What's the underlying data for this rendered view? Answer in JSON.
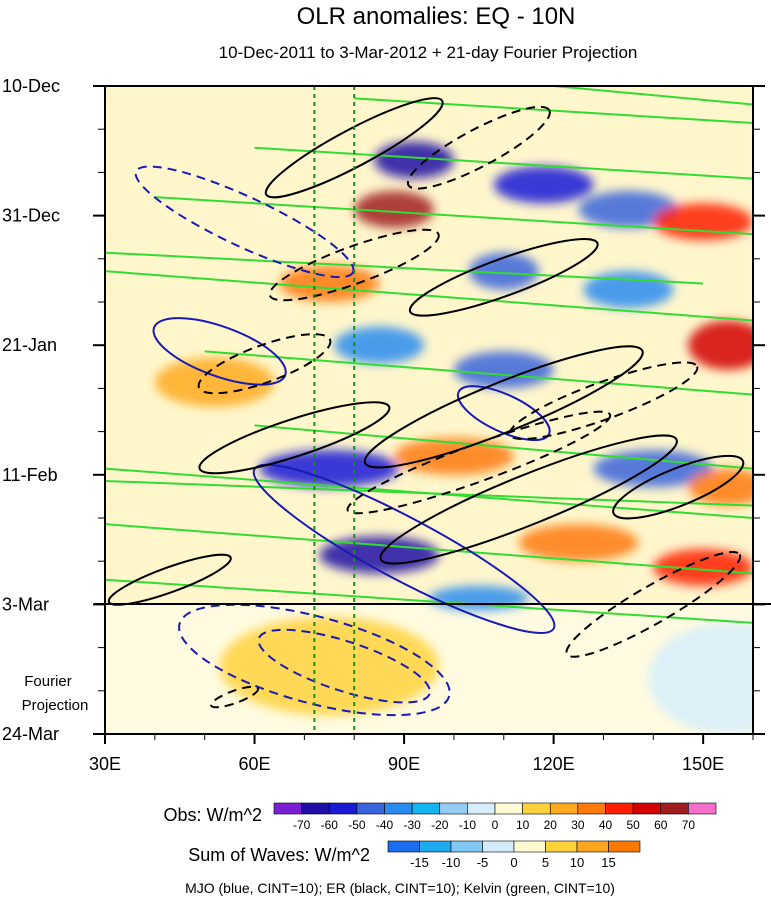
{
  "chart_data": {
    "type": "heatmap",
    "title": "OLR anomalies: EQ - 10N",
    "subtitle": "10-Dec-2011 to 3-Mar-2012 + 21-day Fourier Projection",
    "x_axis": {
      "range": [
        30,
        160
      ],
      "ticks": [
        30,
        60,
        90,
        120,
        150
      ],
      "tick_labels": [
        "30E",
        "60E",
        "90E",
        "120E",
        "150E"
      ]
    },
    "y_axis": {
      "direction": "time increasing downward",
      "range_days": [
        0,
        105
      ],
      "ticks_days": [
        0,
        21,
        42,
        63,
        84,
        105
      ],
      "tick_labels": [
        "10-Dec",
        "31-Dec",
        "21-Jan",
        "11-Feb",
        "3-Mar",
        "24-Mar"
      ]
    },
    "projection_start_day": 84,
    "projection_label_line1": "Fourier",
    "projection_label_line2": "Projection",
    "reference_longitudes": [
      72,
      80
    ],
    "obs_colorbar": {
      "label": "Obs: W/m^2",
      "levels": [
        "-70",
        "-60",
        "-50",
        "-40",
        "-30",
        "-20",
        "-10",
        "0",
        "10",
        "20",
        "30",
        "40",
        "50",
        "60",
        "70"
      ],
      "colors": [
        "#7a1fd6",
        "#1f0fa6",
        "#1a1ad6",
        "#3a64dc",
        "#2a8cf0",
        "#14b4f0",
        "#96ccf4",
        "#d6eefc",
        "#fffbd2",
        "#ffd23c",
        "#ffaa1e",
        "#ff7a0a",
        "#ff1e00",
        "#d20000",
        "#a01e1e",
        "#f56ec8"
      ]
    },
    "waves_colorbar": {
      "label": "Sum of Waves: W/m^2",
      "levels": [
        "-15",
        "-10",
        "-5",
        "0",
        "5",
        "10",
        "15"
      ],
      "colors": [
        "#1a6eee",
        "#1eaaee",
        "#82c8f4",
        "#d2ecfc",
        "#fffad2",
        "#ffd23c",
        "#ffa51e",
        "#ff7800"
      ]
    },
    "contour_sets": [
      {
        "name": "MJO",
        "color": "#1a1ab4",
        "cint": 10
      },
      {
        "name": "ER",
        "color": "#000000",
        "cint": 10
      },
      {
        "name": "Kelvin",
        "color": "#32dc32",
        "cint": 10
      }
    ],
    "footer": "MJO (blue, CINT=10); ER (black, CINT=10); Kelvin (green, CINT=10)",
    "anomaly_features": [
      {
        "lon": 92,
        "day": 12,
        "rx": 8,
        "ry": 3,
        "value": -70
      },
      {
        "lon": 118,
        "day": 16,
        "rx": 10,
        "ry": 3,
        "value": -60
      },
      {
        "lon": 135,
        "day": 20,
        "rx": 10,
        "ry": 3,
        "value": -50
      },
      {
        "lon": 88,
        "day": 20,
        "rx": 8,
        "ry": 3,
        "value": 60
      },
      {
        "lon": 150,
        "day": 22,
        "rx": 10,
        "ry": 3,
        "value": 40
      },
      {
        "lon": 110,
        "day": 30,
        "rx": 7,
        "ry": 3,
        "value": -50
      },
      {
        "lon": 75,
        "day": 32,
        "rx": 10,
        "ry": 3,
        "value": 30
      },
      {
        "lon": 135,
        "day": 33,
        "rx": 9,
        "ry": 3,
        "value": -40
      },
      {
        "lon": 155,
        "day": 42,
        "rx": 8,
        "ry": 4,
        "value": 50
      },
      {
        "lon": 85,
        "day": 42,
        "rx": 9,
        "ry": 3,
        "value": -40
      },
      {
        "lon": 110,
        "day": 46,
        "rx": 10,
        "ry": 3,
        "value": -50
      },
      {
        "lon": 52,
        "day": 48,
        "rx": 12,
        "ry": 4,
        "value": 20
      },
      {
        "lon": 75,
        "day": 62,
        "rx": 14,
        "ry": 3,
        "value": -60
      },
      {
        "lon": 100,
        "day": 60,
        "rx": 12,
        "ry": 3,
        "value": 30
      },
      {
        "lon": 140,
        "day": 62,
        "rx": 12,
        "ry": 3,
        "value": -50
      },
      {
        "lon": 155,
        "day": 65,
        "rx": 8,
        "ry": 3,
        "value": 30
      },
      {
        "lon": 85,
        "day": 76,
        "rx": 12,
        "ry": 3,
        "value": -70
      },
      {
        "lon": 125,
        "day": 74,
        "rx": 12,
        "ry": 3,
        "value": 30
      },
      {
        "lon": 150,
        "day": 78,
        "rx": 10,
        "ry": 3,
        "value": 40
      },
      {
        "lon": 105,
        "day": 83,
        "rx": 10,
        "ry": 2,
        "value": -40
      },
      {
        "lon": 75,
        "day": 94,
        "rx": 22,
        "ry": 8,
        "value": 15
      },
      {
        "lon": 155,
        "day": 96,
        "rx": 16,
        "ry": 9,
        "value": -10
      }
    ],
    "contours": [
      {
        "set": "MJO",
        "dash": true,
        "lon": 58,
        "day": 22,
        "rx": 24,
        "ry": 4,
        "angle": 25
      },
      {
        "set": "MJO",
        "dash": false,
        "lon": 53,
        "day": 43,
        "rx": 14,
        "ry": 4,
        "angle": 20
      },
      {
        "set": "MJO",
        "dash": false,
        "lon": 110,
        "day": 53,
        "rx": 10,
        "ry": 3,
        "angle": 25
      },
      {
        "set": "MJO",
        "dash": false,
        "lon": 90,
        "day": 75,
        "rx": 34,
        "ry": 5,
        "angle": 28
      },
      {
        "set": "MJO",
        "dash": true,
        "lon": 72,
        "day": 93,
        "rx": 28,
        "ry": 7,
        "angle": 15
      },
      {
        "set": "MJO",
        "dash": true,
        "lon": 78,
        "day": 94,
        "rx": 18,
        "ry": 4,
        "angle": 18
      },
      {
        "set": "ER",
        "dash": false,
        "lon": 80,
        "day": 10,
        "rx": 20,
        "ry": 3,
        "angle": -28
      },
      {
        "set": "ER",
        "dash": true,
        "lon": 105,
        "day": 10,
        "rx": 16,
        "ry": 3,
        "angle": -28
      },
      {
        "set": "ER",
        "dash": true,
        "lon": 80,
        "day": 29,
        "rx": 18,
        "ry": 3,
        "angle": -20
      },
      {
        "set": "ER",
        "dash": false,
        "lon": 110,
        "day": 31,
        "rx": 20,
        "ry": 3,
        "angle": -20
      },
      {
        "set": "ER",
        "dash": true,
        "lon": 62,
        "day": 45,
        "rx": 14,
        "ry": 3,
        "angle": -20
      },
      {
        "set": "ER",
        "dash": false,
        "lon": 68,
        "day": 57,
        "rx": 20,
        "ry": 3,
        "angle": -18
      },
      {
        "set": "ER",
        "dash": false,
        "lon": 110,
        "day": 52,
        "rx": 30,
        "ry": 4,
        "angle": -22
      },
      {
        "set": "ER",
        "dash": true,
        "lon": 130,
        "day": 51,
        "rx": 20,
        "ry": 3,
        "angle": -20
      },
      {
        "set": "ER",
        "dash": false,
        "lon": 115,
        "day": 67,
        "rx": 32,
        "ry": 4,
        "angle": -22
      },
      {
        "set": "ER",
        "dash": true,
        "lon": 105,
        "day": 61,
        "rx": 28,
        "ry": 3,
        "angle": -20
      },
      {
        "set": "ER",
        "dash": false,
        "lon": 145,
        "day": 65,
        "rx": 14,
        "ry": 3,
        "angle": -22
      },
      {
        "set": "ER",
        "dash": false,
        "lon": 43,
        "day": 80,
        "rx": 13,
        "ry": 2,
        "angle": -20
      },
      {
        "set": "ER",
        "dash": true,
        "lon": 140,
        "day": 84,
        "rx": 20,
        "ry": 3,
        "angle": -30
      },
      {
        "set": "ER",
        "dash": true,
        "lon": 56,
        "day": 99,
        "rx": 5,
        "ry": 1,
        "angle": -20
      }
    ],
    "kelvin_lines": [
      [
        30,
        30,
        160,
        38
      ],
      [
        30,
        62,
        160,
        70
      ],
      [
        60,
        10,
        160,
        15
      ],
      [
        30,
        80,
        160,
        87
      ],
      [
        40,
        18,
        160,
        24
      ],
      [
        30,
        71,
        160,
        79
      ],
      [
        50,
        43,
        160,
        50
      ],
      [
        30,
        27,
        150,
        32
      ],
      [
        60,
        55,
        160,
        62
      ],
      [
        30,
        64,
        160,
        68
      ],
      [
        80,
        2,
        160,
        6
      ],
      [
        120,
        0,
        160,
        3
      ]
    ]
  }
}
